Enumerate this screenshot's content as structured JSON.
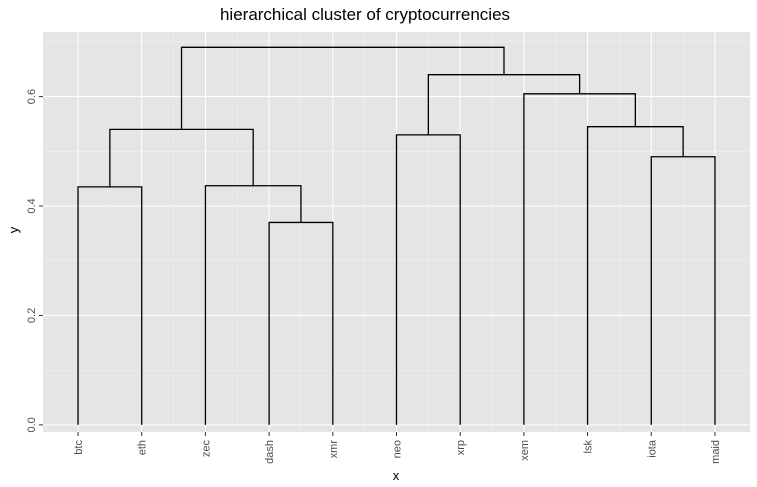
{
  "chart_data": {
    "type": "dendrogram",
    "title": "hierarchical cluster of cryptocurrencies",
    "xlabel": "x",
    "ylabel": "y",
    "ylim": [
      -0.013,
      0.718
    ],
    "xlim": [
      0.45,
      11.55
    ],
    "grid": true,
    "legend": "none",
    "y_ticks": [
      0.0,
      0.2,
      0.4,
      0.6
    ],
    "y_tick_labels": [
      "0.0",
      "0.2",
      "0.4",
      "0.6"
    ],
    "leaves": [
      "btc",
      "eth",
      "zec",
      "dash",
      "xmr",
      "neo",
      "xrp",
      "xem",
      "lsk",
      "iota",
      "maid"
    ],
    "merges": [
      {
        "left": "btc",
        "right": "eth",
        "height": 0.435
      },
      {
        "left": "dash",
        "right": "xmr",
        "height": 0.37
      },
      {
        "left": "zec",
        "right": "dash+xmr",
        "height": 0.437
      },
      {
        "left": "btc+eth",
        "right": "zec+dash+xmr",
        "height": 0.54
      },
      {
        "left": "neo",
        "right": "xrp",
        "height": 0.53
      },
      {
        "left": "iota",
        "right": "maid",
        "height": 0.49
      },
      {
        "left": "lsk",
        "right": "iota+maid",
        "height": 0.545
      },
      {
        "left": "xem",
        "right": "lsk+iota+maid",
        "height": 0.605
      },
      {
        "left": "neo+xrp",
        "right": "xem+lsk+iota+maid",
        "height": 0.64
      },
      {
        "left": "btc+eth+zec+dash+xmr",
        "right": "neo+xrp+xem+lsk+iota+maid",
        "height": 0.69
      }
    ],
    "colors": {
      "panel": "#e5e5e5",
      "grid_major": "#ffffff",
      "grid_minor": "#f2f2f2",
      "line": "#000000",
      "tick_text": "#4d4d4d"
    }
  }
}
